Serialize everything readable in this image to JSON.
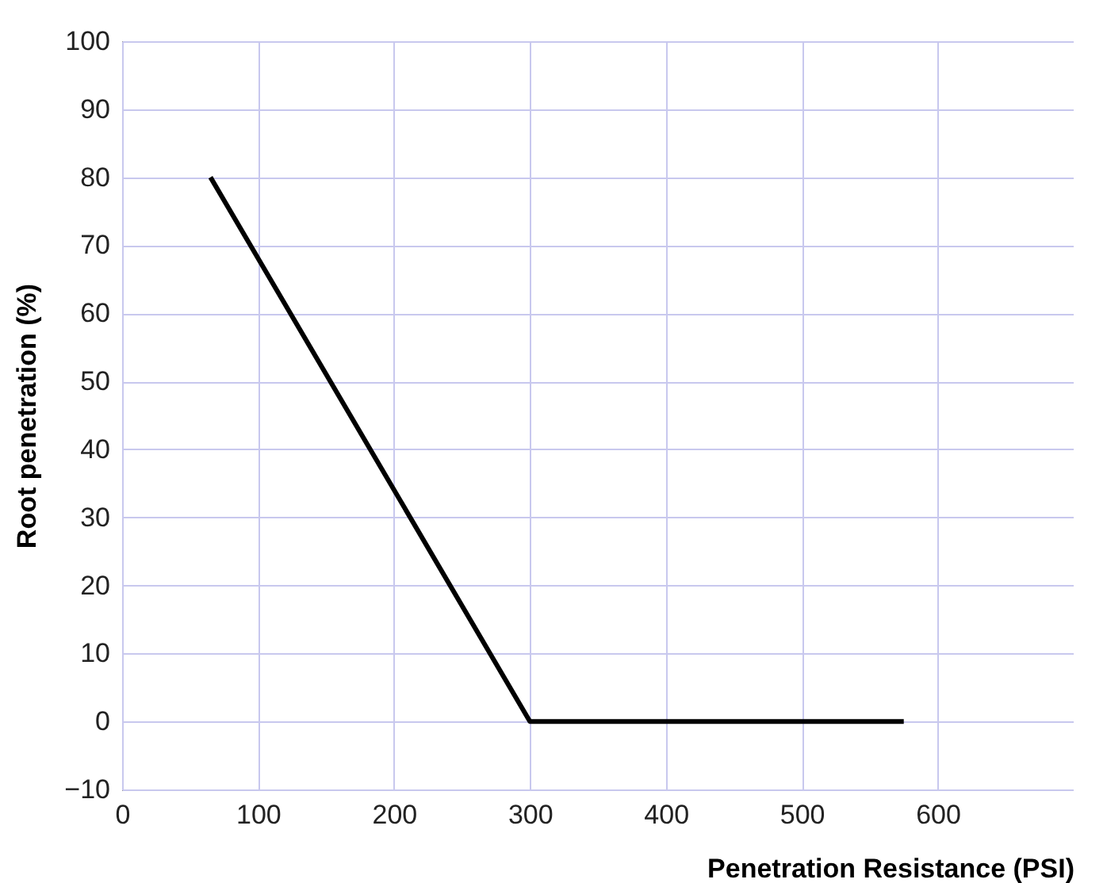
{
  "chart_data": {
    "type": "line",
    "xlabel": "Penetration Resistance (PSI)",
    "ylabel": "Root penetration (%)",
    "x": [
      65,
      300,
      575
    ],
    "series": [
      {
        "color": "#000000",
        "values": [
          80,
          0,
          0
        ]
      }
    ],
    "xlim": [
      0,
      700
    ],
    "xticks": [
      0,
      100,
      200,
      300,
      400,
      500,
      600
    ],
    "ylim": [
      -10,
      100
    ],
    "yticks": [
      -10,
      0,
      10,
      20,
      30,
      40,
      50,
      60,
      70,
      80,
      90,
      100
    ],
    "grid": true,
    "legend": false,
    "marker": "none",
    "line_style": "solid"
  }
}
